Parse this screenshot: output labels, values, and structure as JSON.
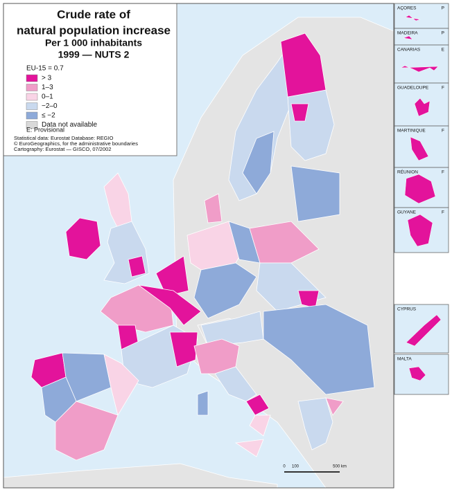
{
  "title": {
    "lines": [
      "Crude rate of",
      "natural population increase",
      "Per 1 000 inhabitants",
      "1999 — NUTS 2"
    ]
  },
  "legend": {
    "reference": "EU-15 = 0.7",
    "items": [
      {
        "label": "> 3",
        "color": "#e3139b"
      },
      {
        "label": "1–3",
        "color": "#f09dc8"
      },
      {
        "label": "0–1",
        "color": "#f9d4e6"
      },
      {
        "label": "−2–0",
        "color": "#c9d9ee"
      },
      {
        "label": "≤ −2",
        "color": "#8eaad9"
      },
      {
        "label": "Data not available",
        "color": "#d9d9d9"
      }
    ]
  },
  "note": "E: Provisional",
  "sources": [
    "Statistical data: Eurostat Database: REGIO",
    "© EuroGeographics, for the administrative boundaries",
    "Cartography: Eurostat — GISCO, 07/2002"
  ],
  "insets": [
    {
      "name": "AÇORES",
      "country": "P"
    },
    {
      "name": "MADEIRA",
      "country": "P"
    },
    {
      "name": "CANARIAS",
      "country": "E"
    },
    {
      "name": "GUADELOUPE",
      "country": "F"
    },
    {
      "name": "MARTINIQUE",
      "country": "F"
    },
    {
      "name": "RÉUNION",
      "country": "F"
    },
    {
      "name": "GUYANE",
      "country": "F"
    },
    {
      "name": "CYPRUS"
    },
    {
      "name": "MALTA"
    }
  ],
  "scale": {
    "labels": [
      "0",
      "100",
      "500 km"
    ]
  }
}
